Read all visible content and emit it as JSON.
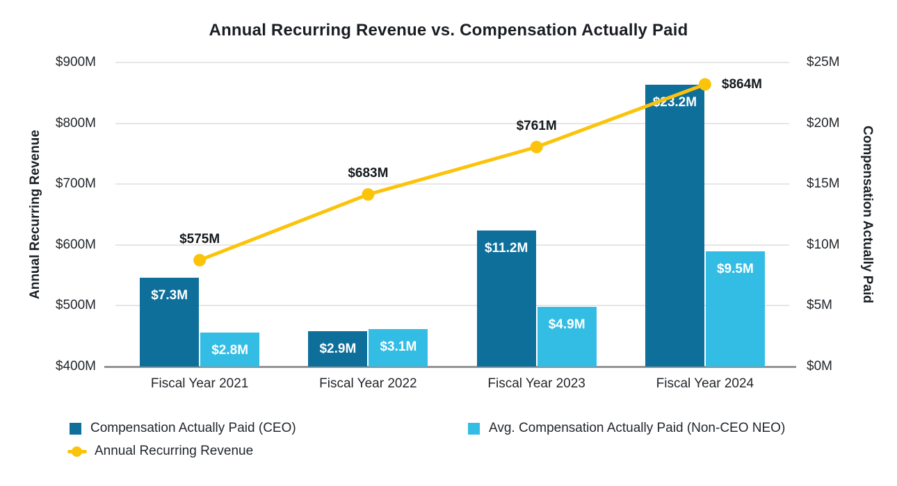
{
  "chart_data": {
    "type": "combo-bar-line",
    "title": "Annual Recurring Revenue vs. Compensation Actually Paid",
    "categories": [
      "Fiscal Year 2021",
      "Fiscal Year 2022",
      "Fiscal Year 2023",
      "Fiscal Year 2024"
    ],
    "series": [
      {
        "name": "Compensation Actually Paid (CEO)",
        "type": "bar",
        "axis": "right",
        "color": "#0e6f9b",
        "values": [
          7.3,
          2.9,
          11.2,
          23.2
        ],
        "labels": [
          "$7.3M",
          "$2.9M",
          "$11.2M",
          "$23.2M"
        ]
      },
      {
        "name": "Avg. Compensation Actually Paid (Non-CEO NEO)",
        "type": "bar",
        "axis": "right",
        "color": "#33bde5",
        "values": [
          2.8,
          3.1,
          4.9,
          9.5
        ],
        "labels": [
          "$2.8M",
          "$3.1M",
          "$4.9M",
          "$9.5M"
        ]
      },
      {
        "name": "Annual Recurring Revenue",
        "type": "line",
        "axis": "left",
        "color": "#fcc30b",
        "values": [
          575,
          683,
          761,
          864
        ],
        "labels": [
          "$575M",
          "$683M",
          "$761M",
          "$864M"
        ]
      }
    ],
    "axes": {
      "left": {
        "title": "Annual Recurring Revenue",
        "min": 400,
        "max": 900,
        "step": 100,
        "tick_labels": [
          "$400M",
          "$500M",
          "$600M",
          "$700M",
          "$800M",
          "$900M"
        ]
      },
      "right": {
        "title": "Compensation Actually Paid",
        "min": 0,
        "max": 25,
        "step": 5,
        "tick_labels": [
          "$0M",
          "$5M",
          "$10M",
          "$15M",
          "$20M",
          "$25M"
        ]
      }
    },
    "layout": {
      "grid": "horizontal",
      "legend_position": "bottom-left",
      "grid_color": "#e6e6e7",
      "axis_line_color": "#939393",
      "bar_label_color": "#ffffff",
      "point_label_color": "#15191d"
    }
  }
}
